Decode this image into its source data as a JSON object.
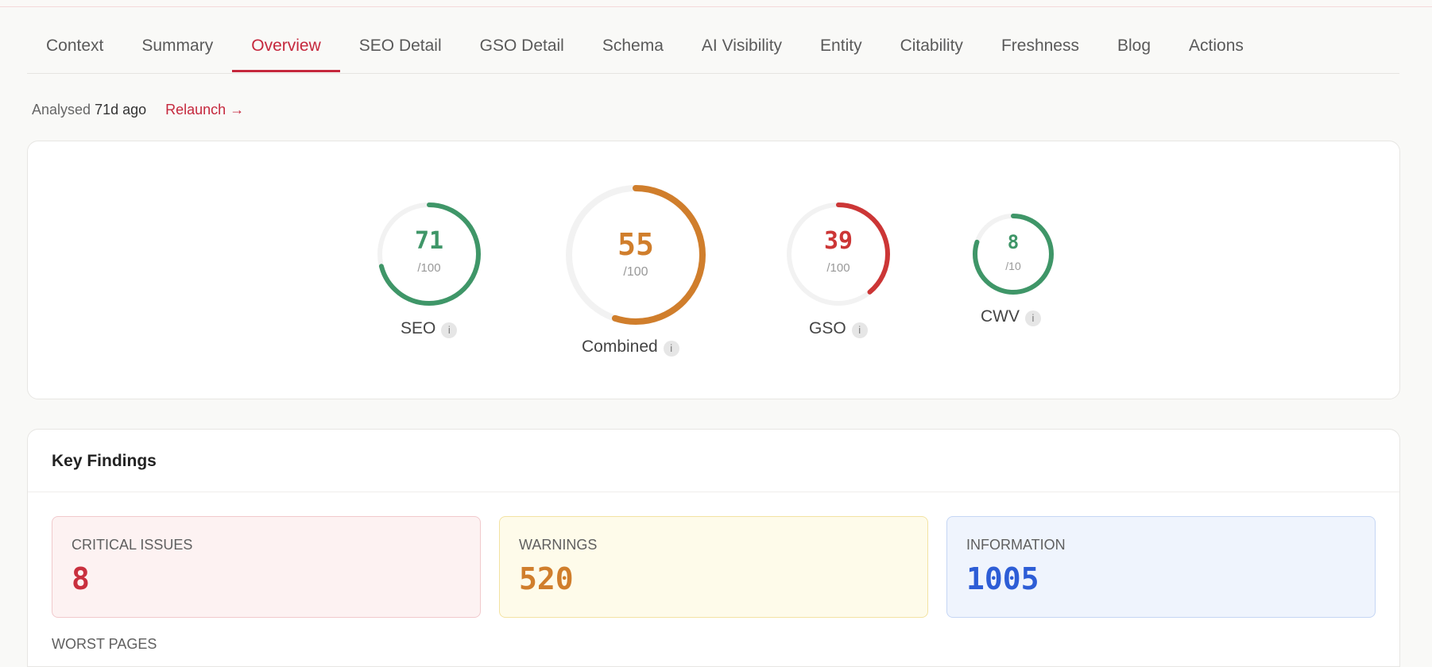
{
  "tabs": [
    {
      "label": "Context"
    },
    {
      "label": "Summary"
    },
    {
      "label": "Overview",
      "active": true
    },
    {
      "label": "SEO Detail"
    },
    {
      "label": "GSO Detail"
    },
    {
      "label": "Schema"
    },
    {
      "label": "AI Visibility"
    },
    {
      "label": "Entity"
    },
    {
      "label": "Citability"
    },
    {
      "label": "Freshness"
    },
    {
      "label": "Blog"
    },
    {
      "label": "Actions"
    }
  ],
  "meta": {
    "analysed_label": "Analysed",
    "analysed_value": "71d ago",
    "relaunch_label": "Relaunch →"
  },
  "scores": {
    "seo": {
      "value": "71",
      "denominator": "/100",
      "label": "SEO",
      "fraction": 0.71,
      "color": "#3f9668",
      "info": "i"
    },
    "combined": {
      "value": "55",
      "denominator": "/100",
      "label": "Combined",
      "fraction": 0.55,
      "color": "#d07e2c",
      "info": "i"
    },
    "gso": {
      "value": "39",
      "denominator": "/100",
      "label": "GSO",
      "fraction": 0.39,
      "color": "#cc3636",
      "info": "i"
    },
    "cwv": {
      "value": "8",
      "denominator": "/10",
      "label": "CWV",
      "fraction": 0.8,
      "color": "#3f9668",
      "info": "i"
    }
  },
  "findings": {
    "title": "Key Findings",
    "critical": {
      "label": "CRITICAL ISSUES",
      "value": "8"
    },
    "warnings": {
      "label": "WARNINGS",
      "value": "520"
    },
    "information": {
      "label": "INFORMATION",
      "value": "1005"
    },
    "worst_pages_label": "WORST PAGES"
  },
  "colors": {
    "accent": "#c5283d",
    "track": "#f2f2f2"
  }
}
